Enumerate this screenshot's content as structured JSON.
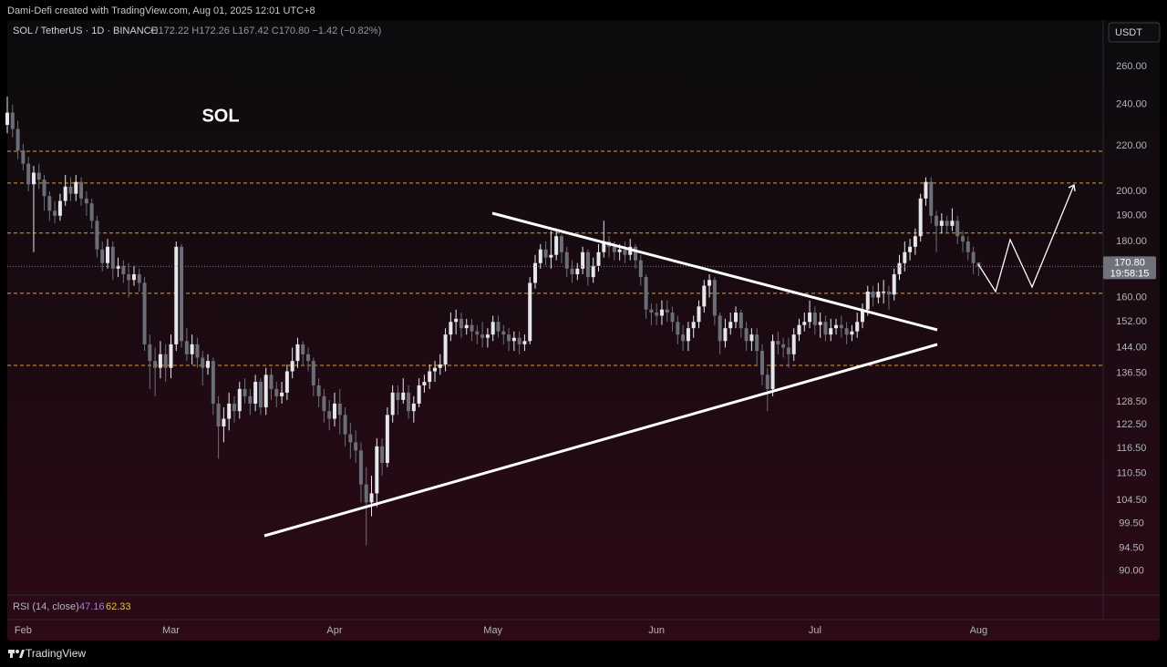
{
  "header": "Dami-Defi created with TradingView.com, Aug 01, 2025 12:01 UTC+8",
  "symbol": "SOL / TetherUS · 1D · BINANCE",
  "ohlc_legend": [
    "O172.22",
    "H172.26",
    "L167.42",
    "C170.80",
    "−1.42 (−0.82%)"
  ],
  "currency_button": "USDT",
  "annotation": "SOL",
  "last_price_label": "170.80",
  "countdown": "19:58:15",
  "rsi": {
    "label": "RSI (14, close)",
    "values": [
      "47.16",
      "62.33"
    ],
    "colors": [
      "#9c7fe0",
      "#e6c24a"
    ]
  },
  "footer": "TradingView",
  "chart_data": {
    "type": "candlestick",
    "log_scale": true,
    "grid": false,
    "up_color": "#e6e7eb",
    "down_color": "#6b6e79",
    "level_color": "#e0a030",
    "levels": [
      217.6,
      203.5,
      183.2,
      161.4,
      138.7
    ],
    "ylim": [
      85.6,
      286.7
    ],
    "yticks": [
      {
        "value": 260,
        "label": "260.00"
      },
      {
        "value": 240,
        "label": "240.00"
      },
      {
        "value": 220,
        "label": "220.00"
      },
      {
        "value": 200,
        "label": "200.00"
      },
      {
        "value": 190,
        "label": "190.00"
      },
      {
        "value": 180,
        "label": "180.00"
      },
      {
        "value": 160,
        "label": "160.00"
      },
      {
        "value": 152,
        "label": "152.00"
      },
      {
        "value": 144,
        "label": "144.00"
      },
      {
        "value": 136.5,
        "label": "136.50"
      },
      {
        "value": 128.5,
        "label": "128.50"
      },
      {
        "value": 122.5,
        "label": "122.50"
      },
      {
        "value": 116.5,
        "label": "116.50"
      },
      {
        "value": 110.5,
        "label": "110.50"
      },
      {
        "value": 104.5,
        "label": "104.50"
      },
      {
        "value": 99.5,
        "label": "99.50"
      },
      {
        "value": 94.5,
        "label": "94.50"
      },
      {
        "value": 90,
        "label": "90.00"
      }
    ],
    "categories": [
      null,
      null,
      null,
      "Feb",
      null,
      null,
      null,
      null,
      null,
      null,
      null,
      null,
      null,
      null,
      null,
      null,
      null,
      null,
      null,
      null,
      null,
      null,
      null,
      null,
      null,
      null,
      null,
      null,
      null,
      null,
      null,
      "Mar",
      null,
      null,
      null,
      null,
      null,
      null,
      null,
      null,
      null,
      null,
      null,
      null,
      null,
      null,
      null,
      null,
      null,
      null,
      null,
      null,
      null,
      null,
      null,
      null,
      null,
      null,
      null,
      null,
      null,
      null,
      "Apr",
      null,
      null,
      null,
      null,
      null,
      null,
      null,
      null,
      null,
      null,
      null,
      null,
      null,
      null,
      null,
      null,
      null,
      null,
      null,
      null,
      null,
      null,
      null,
      null,
      null,
      null,
      null,
      null,
      null,
      "May",
      null,
      null,
      null,
      null,
      null,
      null,
      null,
      null,
      null,
      null,
      null,
      null,
      null,
      null,
      null,
      null,
      null,
      null,
      null,
      null,
      null,
      null,
      null,
      null,
      null,
      null,
      null,
      null,
      null,
      null,
      "Jun",
      null,
      null,
      null,
      null,
      null,
      null,
      null,
      null,
      null,
      null,
      null,
      null,
      null,
      null,
      null,
      null,
      null,
      null,
      null,
      null,
      null,
      null,
      null,
      null,
      null,
      null,
      null,
      null,
      null,
      "Jul",
      null,
      null,
      null,
      null,
      null,
      null,
      null,
      null,
      null,
      null,
      null,
      null,
      null,
      null,
      null,
      null,
      null,
      null,
      null,
      null,
      null,
      null,
      null,
      null,
      null,
      null,
      null,
      null,
      null,
      null,
      "Aug"
    ],
    "open": [
      230,
      236,
      228,
      218,
      212,
      203,
      208,
      205,
      198,
      192,
      190,
      196,
      202,
      199,
      204,
      197,
      195,
      188,
      177,
      172,
      178,
      170,
      171,
      168,
      166,
      168,
      165,
      145,
      140,
      138,
      142,
      138,
      145,
      178,
      146,
      142,
      145,
      141,
      138,
      140,
      128,
      122,
      124,
      128,
      126,
      132,
      130,
      128,
      134,
      127,
      136,
      132,
      130,
      131,
      137,
      140,
      145,
      142,
      140,
      133,
      130,
      126,
      124,
      128,
      125,
      120,
      118,
      116,
      108,
      104,
      106,
      117,
      113,
      125,
      131,
      129,
      131,
      126,
      128,
      133,
      134,
      137,
      138,
      139,
      148,
      152,
      153,
      150,
      151,
      149,
      148,
      147,
      148,
      152,
      149,
      148,
      146,
      147,
      145,
      146,
      165,
      172,
      177,
      174,
      175,
      182,
      176,
      170,
      168,
      170,
      176,
      167,
      171,
      176,
      180,
      178,
      176,
      177,
      175,
      178,
      173,
      167,
      156,
      155,
      154,
      156,
      155,
      152,
      148,
      146,
      150,
      152,
      157,
      164,
      166,
      154,
      146,
      150,
      152,
      155,
      150,
      146,
      148,
      143,
      136,
      132,
      146,
      145,
      144,
      142,
      148,
      151,
      152,
      155,
      151,
      152,
      148,
      150,
      151,
      150,
      148,
      149,
      152,
      156,
      162,
      160,
      162,
      162,
      161,
      168,
      172,
      176,
      178,
      182,
      197,
      204,
      190,
      186,
      188,
      186,
      188,
      182,
      180,
      176,
      172.22
    ],
    "high": [
      244,
      240,
      232,
      221,
      215,
      211,
      212,
      207,
      200,
      196,
      199,
      207,
      206,
      207,
      206,
      200,
      197,
      190,
      180,
      181,
      180,
      174,
      173,
      172,
      171,
      170,
      167,
      148,
      144,
      146,
      145,
      148,
      180,
      179,
      150,
      148,
      147,
      143,
      142,
      141,
      130,
      127,
      131,
      130,
      134,
      135,
      132,
      136,
      135,
      138,
      138,
      134,
      134,
      139,
      144,
      147,
      146,
      144,
      141,
      135,
      132,
      129,
      131,
      132,
      127,
      123,
      121,
      118,
      112,
      110,
      119,
      119,
      127,
      133,
      133,
      135,
      133,
      130,
      135,
      136,
      139,
      140,
      142,
      150,
      155,
      156,
      155,
      153,
      153,
      151,
      152,
      150,
      154,
      154,
      151,
      150,
      149,
      149,
      148,
      167,
      175,
      179,
      180,
      184,
      185,
      183,
      178,
      173,
      172,
      178,
      177,
      174,
      179,
      188,
      182,
      180,
      179,
      180,
      181,
      179,
      175,
      168,
      158,
      158,
      159,
      159,
      157,
      154,
      151,
      152,
      154,
      159,
      166,
      168,
      167,
      155,
      153,
      155,
      157,
      156,
      152,
      150,
      150,
      145,
      138,
      148,
      149,
      147,
      147,
      150,
      153,
      155,
      159,
      157,
      155,
      154,
      153,
      153,
      154,
      152,
      151,
      155,
      158,
      164,
      164,
      165,
      166,
      164,
      170,
      175,
      180,
      181,
      185,
      199,
      206,
      206,
      192,
      191,
      190,
      193,
      190,
      184,
      182,
      178,
      172.26
    ],
    "low": [
      226,
      224,
      214,
      209,
      200,
      176,
      201,
      192,
      188,
      187,
      188,
      194,
      196,
      196,
      194,
      190,
      185,
      174,
      169,
      170,
      166,
      167,
      165,
      160,
      164,
      162,
      143,
      132,
      130,
      135,
      134,
      135,
      143,
      144,
      140,
      139,
      138,
      133,
      136,
      125,
      114,
      118,
      121,
      123,
      124,
      128,
      125,
      126,
      125,
      125,
      129,
      127,
      128,
      129,
      135,
      138,
      139,
      137,
      130,
      127,
      123,
      121,
      122,
      120,
      117,
      114,
      113,
      104,
      95,
      101,
      103,
      110,
      112,
      123,
      125,
      128,
      124,
      123,
      127,
      131,
      132,
      134,
      136,
      137,
      146,
      148,
      147,
      148,
      146,
      145,
      144,
      144,
      146,
      147,
      145,
      143,
      143,
      142,
      143,
      145,
      163,
      170,
      171,
      170,
      173,
      172,
      167,
      165,
      166,
      168,
      164,
      165,
      169,
      174,
      174,
      173,
      173,
      172,
      173,
      170,
      164,
      153,
      151,
      151,
      151,
      152,
      149,
      145,
      143,
      143,
      147,
      150,
      155,
      160,
      151,
      142,
      144,
      148,
      150,
      147,
      143,
      143,
      139,
      133,
      126,
      130,
      142,
      141,
      138,
      140,
      146,
      149,
      150,
      148,
      147,
      146,
      146,
      148,
      147,
      145,
      146,
      147,
      150,
      154,
      157,
      158,
      158,
      156,
      159,
      166,
      169,
      173,
      175,
      180,
      194,
      187,
      176,
      183,
      183,
      184,
      179,
      176,
      173,
      168,
      167.42
    ],
    "close": [
      236,
      228,
      218,
      212,
      203,
      208,
      205,
      198,
      192,
      190,
      196,
      202,
      199,
      204,
      197,
      195,
      188,
      177,
      172,
      178,
      170,
      171,
      168,
      166,
      168,
      165,
      145,
      140,
      138,
      142,
      138,
      145,
      178,
      146,
      142,
      145,
      141,
      138,
      140,
      128,
      122,
      124,
      128,
      126,
      132,
      130,
      128,
      134,
      127,
      136,
      132,
      130,
      131,
      137,
      140,
      145,
      142,
      140,
      133,
      130,
      126,
      124,
      128,
      125,
      120,
      118,
      116,
      108,
      104,
      106,
      117,
      113,
      125,
      131,
      129,
      131,
      126,
      128,
      133,
      134,
      137,
      138,
      139,
      148,
      152,
      153,
      150,
      151,
      149,
      148,
      147,
      148,
      152,
      149,
      148,
      146,
      147,
      145,
      146,
      165,
      172,
      177,
      174,
      175,
      182,
      176,
      170,
      168,
      170,
      176,
      167,
      171,
      176,
      180,
      178,
      176,
      177,
      175,
      178,
      173,
      167,
      156,
      155,
      154,
      156,
      155,
      152,
      148,
      146,
      150,
      152,
      157,
      164,
      166,
      154,
      146,
      150,
      152,
      155,
      150,
      146,
      148,
      143,
      136,
      132,
      146,
      145,
      144,
      142,
      148,
      151,
      152,
      155,
      151,
      152,
      148,
      150,
      151,
      150,
      148,
      149,
      152,
      156,
      162,
      160,
      162,
      162,
      161,
      168,
      172,
      176,
      178,
      182,
      197,
      204,
      190,
      186,
      188,
      186,
      188,
      182,
      180,
      176,
      172,
      170.8
    ]
  }
}
